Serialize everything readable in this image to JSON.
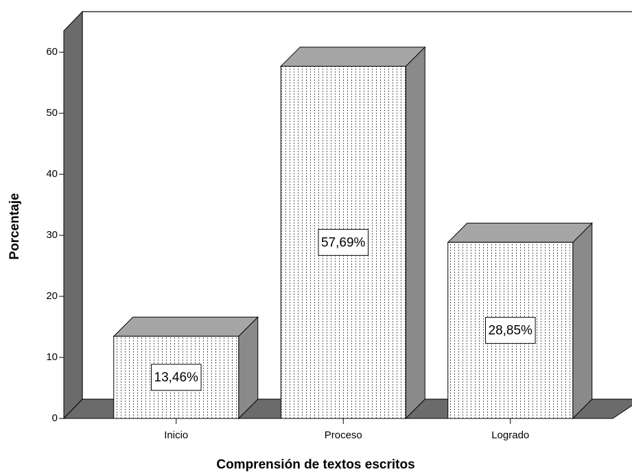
{
  "chart_data": {
    "type": "bar",
    "x_label": "Comprensión de textos escritos",
    "y_label": "Porcentaje",
    "categories": [
      "Inicio",
      "Proceso",
      "Logrado"
    ],
    "values": [
      13.46,
      57.69,
      28.85
    ],
    "value_labels": [
      "13,46%",
      "57,69%",
      "28,85%"
    ],
    "ylim": [
      0,
      63.5
    ],
    "yticks": [
      0,
      10,
      20,
      30,
      40,
      50,
      60
    ]
  }
}
